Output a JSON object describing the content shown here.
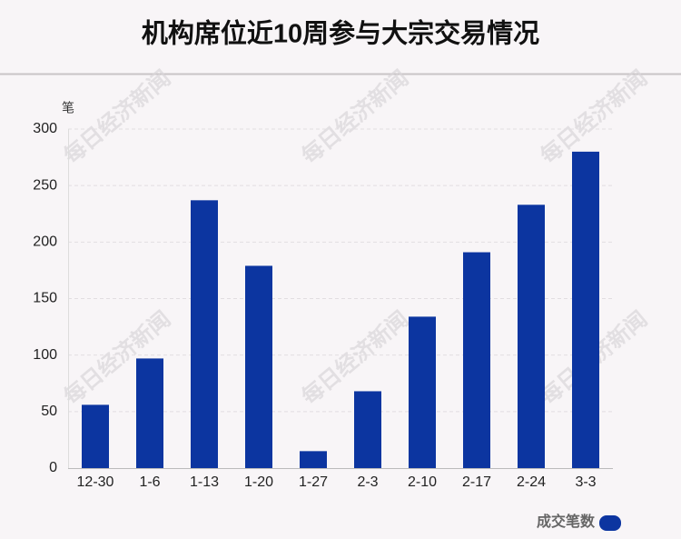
{
  "chart_data": {
    "type": "bar",
    "title": "机构席位近10周参与大宗交易情况",
    "y_unit": "笔",
    "categories": [
      "12-30",
      "1-6",
      "1-13",
      "1-20",
      "1-27",
      "2-3",
      "2-10",
      "2-17",
      "2-24",
      "3-3"
    ],
    "series": [
      {
        "name": "成交笔数",
        "color": "#0c35a0",
        "values": [
          56,
          97,
          237,
          179,
          15,
          68,
          134,
          191,
          233,
          280
        ]
      }
    ],
    "ylim": [
      0,
      300
    ],
    "yticks": [
      0,
      50,
      100,
      150,
      200,
      250,
      300
    ],
    "grid": true,
    "legend": "bottom-right",
    "watermark": "每日经济新闻"
  }
}
